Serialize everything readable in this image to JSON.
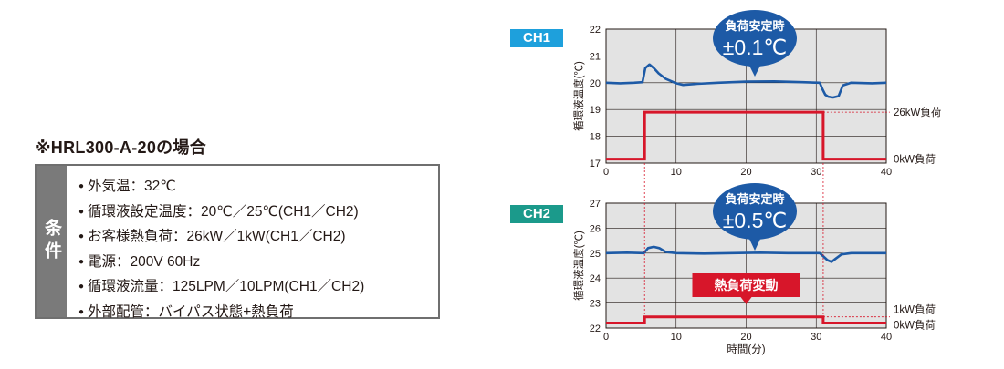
{
  "conditions": {
    "title": "※HRL300-A-20の場合",
    "header": "条件",
    "items": [
      "外気温：32℃",
      "循環液設定温度：20℃／25℃(CH1／CH2)",
      "お客様熱負荷：26kW／1kW(CH1／CH2)",
      "電源：200V 60Hz",
      "循環液流量：125LPM／10LPM(CH1／CH2)",
      "外部配管：バイパス状態+熱負荷"
    ]
  },
  "colors": {
    "ch1_badge": "#1ea0dc",
    "ch2_badge": "#1b9a8b",
    "temp_line": "#1d5aa6",
    "load_line": "#d7162a",
    "callout": "#1d5aa6",
    "plot_bg": "#e3e3e3",
    "cond_header": "#7a7a7a"
  },
  "chart_data": [
    {
      "type": "line",
      "label": "CH1",
      "ylabel": "循環液温度(℃)",
      "xlim": [
        0,
        40
      ],
      "ylim": [
        17,
        22
      ],
      "xticks": [
        0,
        10,
        20,
        30,
        40
      ],
      "yticks": [
        17,
        18,
        19,
        20,
        21,
        22
      ],
      "grid": true,
      "callout_title": "負荷安定時",
      "callout_value": "±0.1℃",
      "load_labels": {
        "high": "26kW負荷",
        "low": "0kW負荷"
      },
      "series": [
        {
          "role": "temperature",
          "x": [
            0,
            2,
            4,
            5.2,
            5.6,
            6.2,
            6.8,
            7.5,
            8.5,
            10,
            11,
            13,
            16,
            20,
            24,
            28,
            30.5,
            30.9,
            31.3,
            31.7,
            32.4,
            33.2,
            33.8,
            35,
            38,
            40
          ],
          "y": [
            20.0,
            19.98,
            20.0,
            20.02,
            20.55,
            20.68,
            20.55,
            20.35,
            20.15,
            19.98,
            19.92,
            19.96,
            20.0,
            20.04,
            20.05,
            20.02,
            20.0,
            19.75,
            19.55,
            19.48,
            19.45,
            19.5,
            19.9,
            20.0,
            19.98,
            20.0
          ]
        },
        {
          "role": "load",
          "x": [
            0,
            5.5,
            5.5,
            31.0,
            31.0,
            40
          ],
          "y": [
            17.15,
            17.15,
            18.9,
            18.9,
            17.15,
            17.15
          ]
        }
      ]
    },
    {
      "type": "line",
      "label": "CH2",
      "ylabel": "循環液温度(℃)",
      "xlabel": "時間(分)",
      "xlim": [
        0,
        40
      ],
      "ylim": [
        22,
        27
      ],
      "xticks": [
        0,
        10,
        20,
        30,
        40
      ],
      "yticks": [
        22,
        23,
        24,
        25,
        26,
        27
      ],
      "grid": true,
      "callout_title": "負荷安定時",
      "callout_value": "±0.5℃",
      "load_labels": {
        "high": "1kW負荷",
        "low": "0kW負荷"
      },
      "event_label": "熱負荷変動",
      "series": [
        {
          "role": "temperature",
          "x": [
            0,
            3,
            5.4,
            6.0,
            6.8,
            7.6,
            8.5,
            10,
            14,
            18,
            22,
            26,
            30.5,
            31.1,
            31.6,
            32.2,
            32.8,
            33.6,
            35,
            38,
            40
          ],
          "y": [
            25.0,
            25.02,
            25.0,
            25.2,
            25.25,
            25.2,
            25.05,
            25.0,
            24.98,
            25.0,
            25.02,
            25.0,
            25.0,
            24.85,
            24.72,
            24.65,
            24.78,
            24.95,
            25.0,
            25.0,
            25.0
          ]
        },
        {
          "role": "load",
          "x": [
            0,
            5.5,
            5.5,
            31.0,
            31.0,
            40
          ],
          "y": [
            22.2,
            22.2,
            22.45,
            22.45,
            22.2,
            22.2
          ]
        }
      ]
    }
  ]
}
